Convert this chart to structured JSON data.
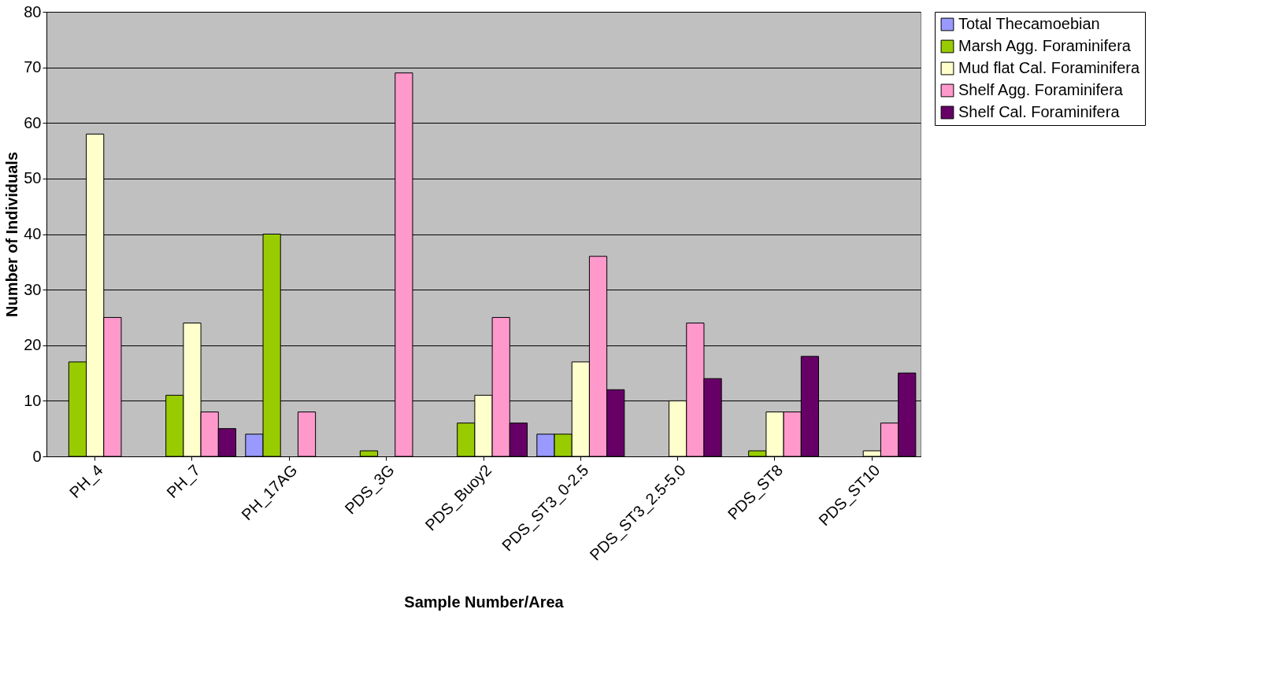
{
  "chart_data": {
    "type": "bar",
    "xlabel": "Sample Number/Area",
    "ylabel": "Number of Individuals",
    "categories": [
      "PH_4",
      "PH_7",
      "PH_17AG",
      "PDS_3G",
      "PDS_Buoy2",
      "PDS_ST3_0-2.5",
      "PDS_ST3_2.5-5.0",
      "PDS_ST8",
      "PDS_ST10"
    ],
    "series": [
      {
        "name": "Total Thecamoebian",
        "color": "#9999ff",
        "values": [
          null,
          null,
          4,
          null,
          null,
          4,
          null,
          null,
          null
        ]
      },
      {
        "name": "Marsh Agg. Foraminifera",
        "color": "#99cc00",
        "values": [
          17,
          11,
          40,
          1,
          6,
          4,
          null,
          1,
          null
        ]
      },
      {
        "name": "Mud flat Cal. Foraminifera",
        "color": "#ffffcc",
        "values": [
          58,
          24,
          null,
          null,
          11,
          17,
          10,
          8,
          1
        ]
      },
      {
        "name": "Shelf Agg. Foraminifera",
        "color": "#ff99cc",
        "values": [
          25,
          8,
          8,
          69,
          25,
          36,
          24,
          8,
          6
        ]
      },
      {
        "name": "Shelf Cal. Foraminifera",
        "color": "#660066",
        "values": [
          null,
          5,
          null,
          null,
          6,
          12,
          14,
          18,
          15
        ]
      }
    ],
    "ylim": [
      0,
      80
    ],
    "yticks": [
      0,
      10,
      20,
      30,
      40,
      50,
      60,
      70,
      80
    ],
    "grid": "y",
    "legend": "right"
  }
}
